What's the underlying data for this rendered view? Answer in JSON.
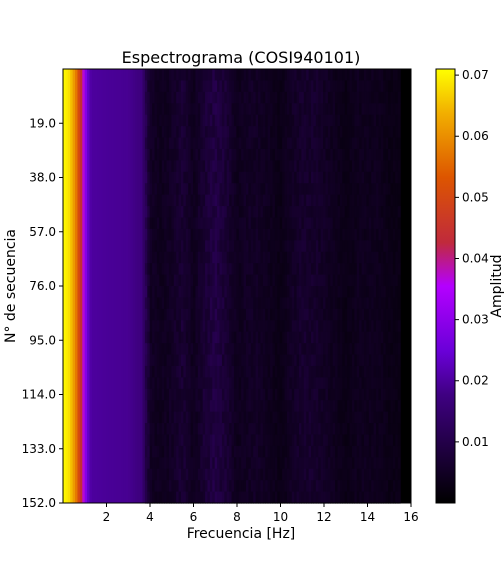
{
  "chart_data": {
    "type": "heatmap",
    "title": "Espectrograma (COSI940101)",
    "xlabel": "Frecuencia [Hz]",
    "ylabel": "N° de secuencia",
    "colorbar_label": "Amplitud",
    "colormap": "gnuplot",
    "x_range": [
      0,
      16
    ],
    "y_range": [
      0,
      152
    ],
    "y_inverted": true,
    "x_ticks": [
      2,
      4,
      6,
      8,
      10,
      12,
      14,
      16
    ],
    "x_tick_labels": [
      "2",
      "4",
      "6",
      "8",
      "10",
      "12",
      "14",
      "16"
    ],
    "y_ticks": [
      19,
      38,
      57,
      76,
      95,
      114,
      133,
      152
    ],
    "y_tick_labels": [
      "19.0",
      "38.0",
      "57.0",
      "76.0",
      "95.0",
      "114.0",
      "133.0",
      "152.0"
    ],
    "colorbar_range": [
      0,
      0.071
    ],
    "colorbar_ticks": [
      0.01,
      0.02,
      0.03,
      0.04,
      0.05,
      0.06,
      0.07
    ],
    "colorbar_tick_labels": [
      "0.01",
      "0.02",
      "0.03",
      "0.04",
      "0.05",
      "0.06",
      "0.07"
    ],
    "amplitude_profile": {
      "frequency_hz": [
        0.0,
        0.3,
        0.6,
        0.9,
        1.1,
        1.3,
        2.0,
        3.0,
        3.6,
        3.8,
        4.0,
        4.5,
        5.0,
        5.5,
        6.0,
        6.5,
        7.0,
        7.5,
        8.0,
        8.5,
        9.0,
        9.5,
        10.0,
        10.5,
        11.0,
        11.5,
        12.0,
        12.5,
        13.0,
        13.5,
        14.0,
        14.5,
        15.0,
        15.5
      ],
      "amplitude": [
        0.071,
        0.068,
        0.058,
        0.04,
        0.025,
        0.02,
        0.0195,
        0.019,
        0.017,
        0.011,
        0.005,
        0.004,
        0.005,
        0.007,
        0.004,
        0.007,
        0.009,
        0.007,
        0.004,
        0.005,
        0.005,
        0.004,
        0.003,
        0.005,
        0.006,
        0.006,
        0.005,
        0.004,
        0.003,
        0.004,
        0.004,
        0.004,
        0.003,
        0.003
      ]
    }
  }
}
